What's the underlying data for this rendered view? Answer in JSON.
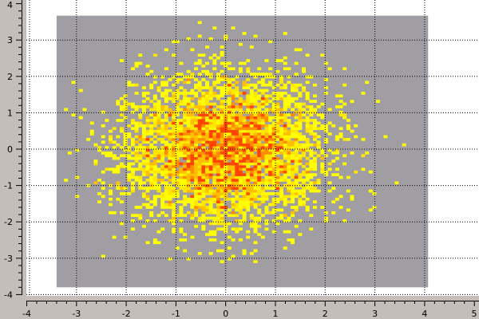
{
  "chart_data": {
    "type": "heatmap",
    "title": "",
    "xlabel": "",
    "ylabel": "",
    "xlim": [
      -4,
      5
    ],
    "ylim": [
      -4,
      4
    ],
    "x_ticks": [
      "-4",
      "-3",
      "-2",
      "-1",
      "0",
      "1",
      "2",
      "3",
      "4",
      "5"
    ],
    "y_ticks": [
      "-4",
      "-3",
      "-2",
      "-1",
      "0",
      "1",
      "2",
      "3",
      "4"
    ],
    "grid": true,
    "histogram_range": {
      "x": [
        -3.4,
        4.07
      ],
      "y": [
        -3.8,
        3.67
      ]
    },
    "bins": {
      "x": 100,
      "y": 100
    },
    "distribution": {
      "kind": "gaussian",
      "mean": [
        0,
        0
      ],
      "sigma": [
        1,
        1
      ],
      "samples": 5000
    },
    "empty_bin_color": "#a09ea3",
    "colormap": [
      "#ffff00",
      "#ffe600",
      "#ffbf00",
      "#ff8c00",
      "#ff4500"
    ]
  }
}
